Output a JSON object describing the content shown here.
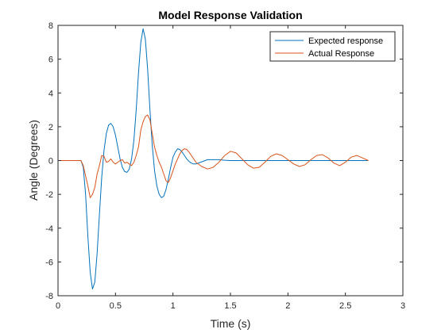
{
  "chart_data": {
    "type": "line",
    "title": "Model Response Validation",
    "xlabel": "Time (s)",
    "ylabel": "Angle (Degrees)",
    "xlim": [
      0,
      3
    ],
    "ylim": [
      -8,
      8
    ],
    "xticks": [
      0,
      0.5,
      1,
      1.5,
      2,
      2.5,
      3
    ],
    "xtick_labels": [
      "0",
      "0.5",
      "1",
      "1.5",
      "2",
      "2.5",
      "3"
    ],
    "yticks": [
      -8,
      -6,
      -4,
      -2,
      0,
      2,
      4,
      6,
      8
    ],
    "ytick_labels": [
      "-8",
      "-6",
      "-4",
      "-2",
      "0",
      "2",
      "4",
      "6",
      "8"
    ],
    "grid": false,
    "legend_position": "top-right",
    "series": [
      {
        "name": "Expected response",
        "color": "#0072BD",
        "x": [
          0,
          0.1,
          0.2,
          0.22,
          0.24,
          0.26,
          0.28,
          0.3,
          0.32,
          0.34,
          0.36,
          0.38,
          0.4,
          0.42,
          0.44,
          0.46,
          0.48,
          0.5,
          0.52,
          0.54,
          0.56,
          0.58,
          0.6,
          0.62,
          0.64,
          0.66,
          0.68,
          0.7,
          0.72,
          0.74,
          0.76,
          0.78,
          0.8,
          0.82,
          0.84,
          0.86,
          0.88,
          0.9,
          0.92,
          0.94,
          0.96,
          0.98,
          1.0,
          1.02,
          1.04,
          1.06,
          1.08,
          1.1,
          1.12,
          1.14,
          1.16,
          1.18,
          1.2,
          1.22,
          1.24,
          1.26,
          1.28,
          1.3,
          1.35,
          1.4,
          1.45,
          1.5,
          1.55,
          1.6,
          1.7,
          1.8,
          1.9,
          2.0,
          2.2,
          2.4,
          2.6,
          2.7
        ],
        "y": [
          0,
          0,
          0,
          -0.4,
          -2.0,
          -4.5,
          -6.6,
          -7.6,
          -7.2,
          -5.5,
          -3.2,
          -1.0,
          0.6,
          1.6,
          2.1,
          2.2,
          2.0,
          1.5,
          0.8,
          0.1,
          -0.4,
          -0.65,
          -0.7,
          -0.5,
          0.1,
          1.2,
          3.0,
          5.2,
          7.0,
          7.8,
          7.2,
          5.4,
          3.0,
          0.9,
          -0.6,
          -1.5,
          -2.0,
          -2.2,
          -2.1,
          -1.7,
          -1.1,
          -0.4,
          0.2,
          0.5,
          0.7,
          0.65,
          0.5,
          0.3,
          0.1,
          -0.05,
          -0.15,
          -0.2,
          -0.2,
          -0.15,
          -0.1,
          -0.05,
          0,
          0.05,
          0.05,
          0.05,
          0.02,
          0,
          0,
          0,
          0,
          0,
          0,
          0,
          0,
          0,
          0,
          0
        ]
      },
      {
        "name": "Actual Response",
        "color": "#D95319",
        "x": [
          0,
          0.1,
          0.2,
          0.22,
          0.24,
          0.26,
          0.28,
          0.3,
          0.32,
          0.34,
          0.36,
          0.38,
          0.4,
          0.42,
          0.44,
          0.46,
          0.48,
          0.5,
          0.52,
          0.54,
          0.56,
          0.58,
          0.6,
          0.62,
          0.64,
          0.66,
          0.68,
          0.7,
          0.72,
          0.74,
          0.76,
          0.78,
          0.8,
          0.82,
          0.84,
          0.86,
          0.88,
          0.9,
          0.92,
          0.94,
          0.96,
          0.98,
          1.0,
          1.02,
          1.04,
          1.06,
          1.08,
          1.1,
          1.12,
          1.14,
          1.16,
          1.18,
          1.2,
          1.25,
          1.3,
          1.35,
          1.4,
          1.45,
          1.5,
          1.55,
          1.6,
          1.65,
          1.7,
          1.75,
          1.8,
          1.85,
          1.9,
          1.95,
          2.0,
          2.05,
          2.1,
          2.15,
          2.2,
          2.25,
          2.3,
          2.35,
          2.4,
          2.45,
          2.5,
          2.55,
          2.6,
          2.65,
          2.7
        ],
        "y": [
          0,
          0,
          0,
          -0.3,
          -0.9,
          -1.5,
          -2.2,
          -2.0,
          -1.6,
          -0.8,
          -0.3,
          0.3,
          0.25,
          -0.1,
          -0.05,
          0.1,
          -0.1,
          -0.2,
          -0.1,
          0,
          0.05,
          -0.15,
          -0.1,
          -0.2,
          -0.3,
          -0.1,
          0.3,
          0.8,
          1.8,
          2.3,
          2.6,
          2.7,
          2.4,
          1.6,
          0.8,
          0.3,
          -0.1,
          -0.4,
          -0.8,
          -1.2,
          -1.3,
          -1.0,
          -0.6,
          -0.2,
          0.1,
          0.4,
          0.6,
          0.7,
          0.65,
          0.5,
          0.3,
          0.1,
          -0.1,
          -0.35,
          -0.5,
          -0.4,
          -0.1,
          0.3,
          0.55,
          0.45,
          0.1,
          -0.25,
          -0.45,
          -0.4,
          -0.1,
          0.25,
          0.4,
          0.3,
          0.05,
          -0.2,
          -0.35,
          -0.25,
          0.05,
          0.3,
          0.35,
          0.15,
          -0.15,
          -0.3,
          -0.1,
          0.2,
          0.3,
          0.15,
          0
        ]
      }
    ]
  }
}
